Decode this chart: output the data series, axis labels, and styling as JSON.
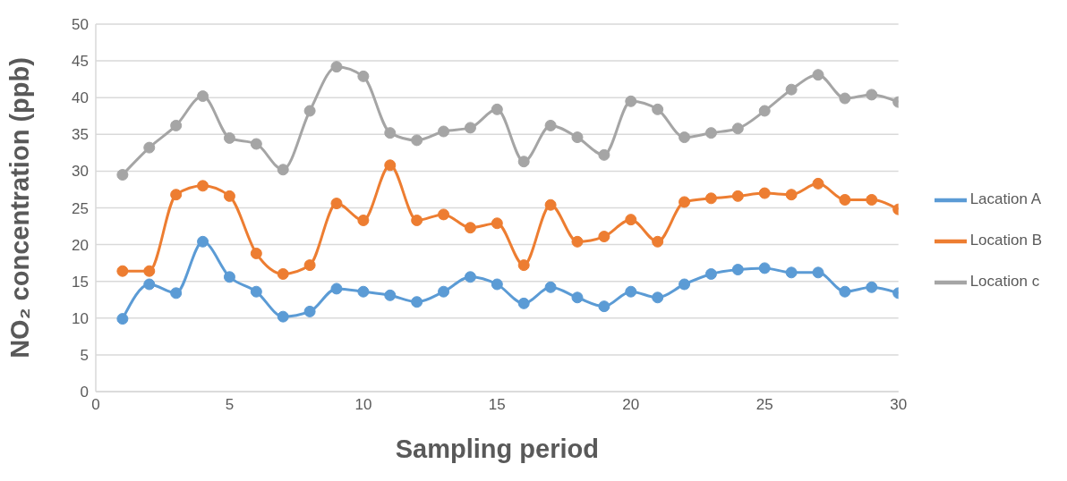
{
  "chart_data": {
    "type": "line",
    "xlabel": "Sampling period",
    "ylabel": "NO₂ concentration (ppb)",
    "x": [
      1,
      2,
      3,
      4,
      5,
      6,
      7,
      8,
      9,
      10,
      11,
      12,
      13,
      14,
      15,
      16,
      17,
      18,
      19,
      20,
      21,
      22,
      23,
      24,
      25,
      26,
      27,
      28,
      29,
      30
    ],
    "xlim": [
      0,
      30
    ],
    "xticks": [
      0,
      5,
      10,
      15,
      20,
      25,
      30
    ],
    "ylim": [
      0,
      50
    ],
    "yticks": [
      0,
      5,
      10,
      15,
      20,
      25,
      30,
      35,
      40,
      45,
      50
    ],
    "grid": "y",
    "legend": "right",
    "marker": "circle",
    "line_style": "solid",
    "series": [
      {
        "name": "Lacation A",
        "color": "#5b9bd5",
        "values": [
          9.9,
          14.6,
          13.4,
          20.4,
          15.6,
          13.6,
          10.2,
          10.9,
          14.0,
          13.6,
          13.1,
          12.2,
          13.6,
          15.6,
          14.6,
          12.0,
          14.2,
          12.8,
          11.6,
          13.6,
          12.8,
          14.6,
          16.0,
          16.6,
          16.8,
          16.2,
          16.2,
          13.6,
          14.2,
          13.4
        ]
      },
      {
        "name": "Location B",
        "color": "#ed7d31",
        "values": [
          16.4,
          16.4,
          26.8,
          28.0,
          26.6,
          18.8,
          16.0,
          17.2,
          25.6,
          23.3,
          30.8,
          23.3,
          24.1,
          22.3,
          22.9,
          17.2,
          25.4,
          20.4,
          21.1,
          23.4,
          20.4,
          25.8,
          26.3,
          26.6,
          27.0,
          26.8,
          28.3,
          26.1,
          26.1,
          24.8
        ]
      },
      {
        "name": "Location c",
        "color": "#a5a5a5",
        "values": [
          29.5,
          33.2,
          36.2,
          40.2,
          34.5,
          33.7,
          30.2,
          38.2,
          44.2,
          42.9,
          35.2,
          34.2,
          35.4,
          35.9,
          38.4,
          31.3,
          36.2,
          34.6,
          32.2,
          39.5,
          38.4,
          34.6,
          35.2,
          35.8,
          38.2,
          41.1,
          43.1,
          39.9,
          40.4,
          39.4
        ]
      }
    ]
  }
}
